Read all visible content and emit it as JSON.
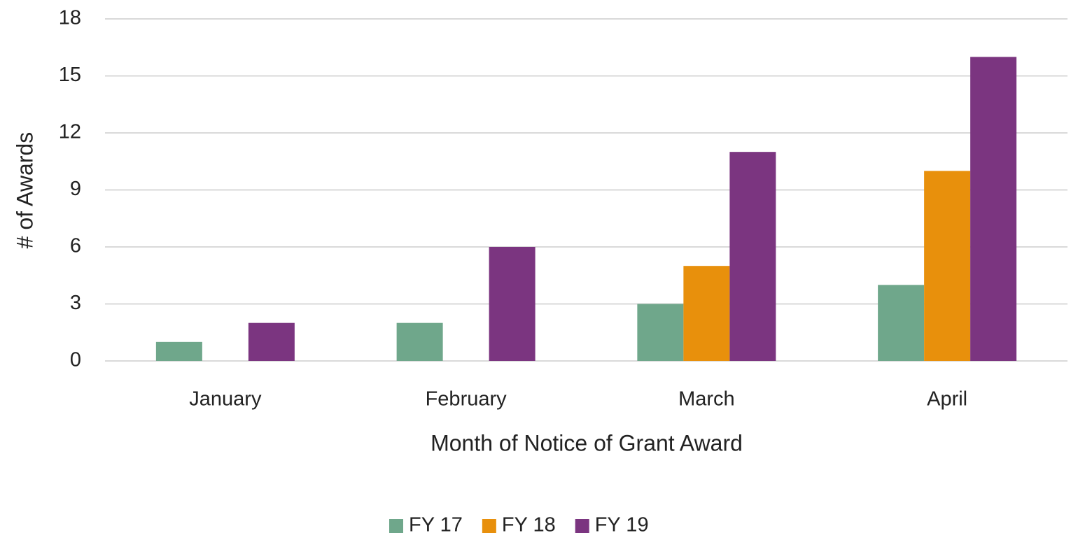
{
  "chart_data": {
    "type": "bar",
    "x_label": "Month of Notice of Grant Award",
    "y_label": "# of Awards",
    "categories": [
      "January",
      "February",
      "March",
      "April"
    ],
    "series": [
      {
        "name": "FY 17",
        "color": "#6fa78b",
        "values": [
          1,
          2,
          3,
          4
        ]
      },
      {
        "name": "FY 18",
        "color": "#e8900c",
        "values": [
          0,
          0,
          5,
          10
        ]
      },
      {
        "name": "FY 19",
        "color": "#7b3580",
        "values": [
          2,
          6,
          11,
          16
        ]
      }
    ],
    "ylim": [
      0,
      18
    ],
    "yticks": [
      0,
      3,
      6,
      9,
      12,
      15,
      18
    ],
    "grid": true,
    "legend": "bottom"
  }
}
